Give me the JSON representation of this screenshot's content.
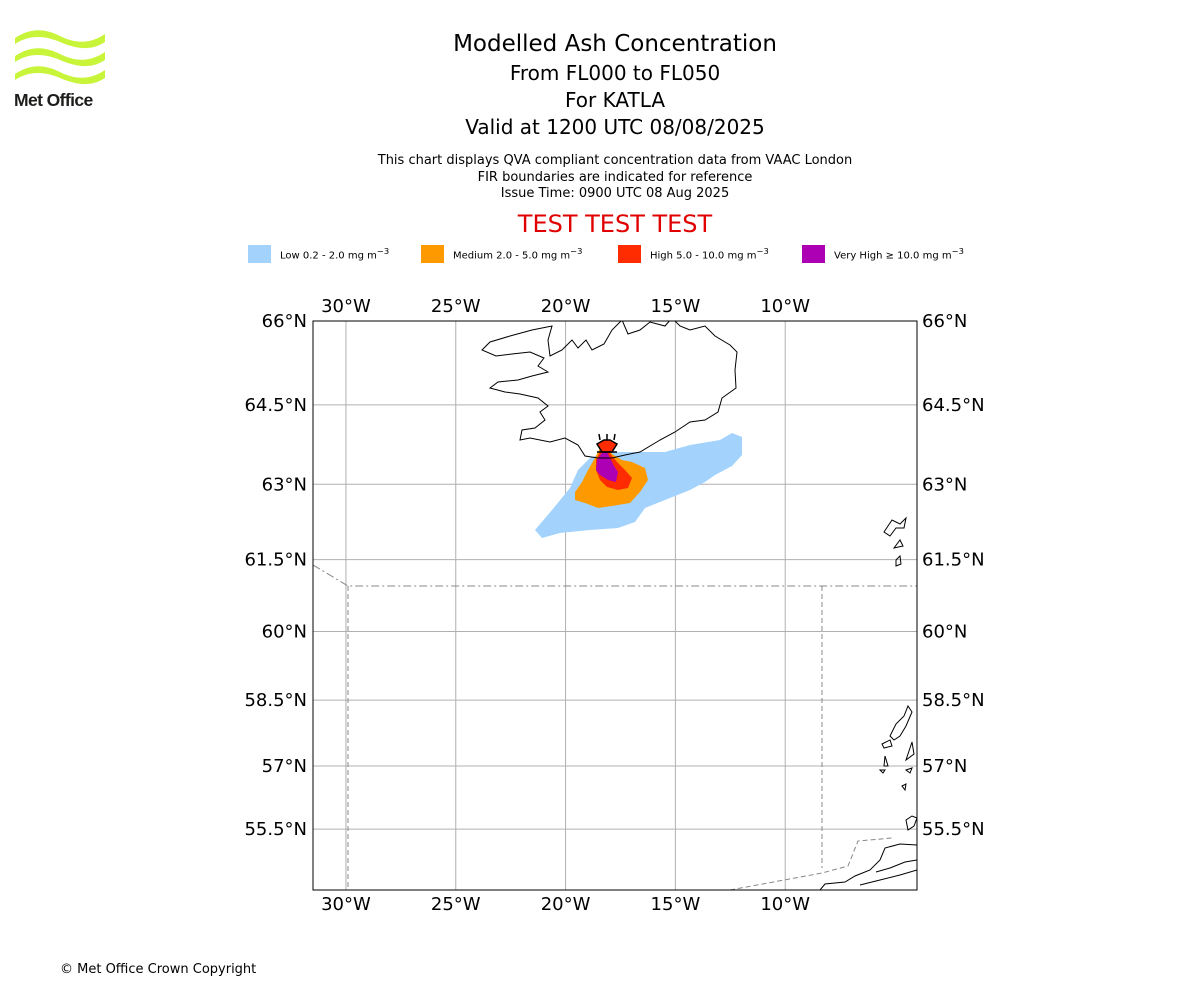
{
  "logo": {
    "text": "Met Office"
  },
  "titles": {
    "main": "Modelled Ash Concentration",
    "levels": "From FL000 to FL050",
    "volcano": "For KATLA",
    "valid": "Valid at 1200 UTC 08/08/2025"
  },
  "subtitles": {
    "line1": "This chart displays QVA compliant concentration data from VAAC London",
    "line2": "FIR boundaries are indicated for reference",
    "line3": "Issue Time: 0900 UTC 08 Aug 2025"
  },
  "test_banner": "TEST TEST TEST",
  "legend": [
    {
      "label": "Low 0.2 - 2.0 mg m",
      "unit_exp": "−3",
      "color": "#a3d3fd"
    },
    {
      "label": "Medium 2.0 - 5.0 mg m",
      "unit_exp": "−3",
      "color": "#fe9a00"
    },
    {
      "label": "High 5.0 - 10.0 mg m",
      "unit_exp": "−3",
      "color": "#fe2c00"
    },
    {
      "label": "Very High  ≥  10.0 mg m",
      "unit_exp": "−3",
      "color": "#ad00b4"
    }
  ],
  "map": {
    "lon_range": [
      -31.5,
      -4
    ],
    "lat_range": [
      54,
      66
    ],
    "lon_ticks": [
      {
        "value": -30,
        "label": "30°W"
      },
      {
        "value": -25,
        "label": "25°W"
      },
      {
        "value": -20,
        "label": "20°W"
      },
      {
        "value": -15,
        "label": "15°W"
      },
      {
        "value": -10,
        "label": "10°W"
      }
    ],
    "lat_ticks": [
      {
        "value": 66,
        "label": "66°N"
      },
      {
        "value": 64.5,
        "label": "64.5°N"
      },
      {
        "value": 63,
        "label": "63°N"
      },
      {
        "value": 61.5,
        "label": "61.5°N"
      },
      {
        "value": 60,
        "label": "60°N"
      },
      {
        "value": 58.5,
        "label": "58.5°N"
      },
      {
        "value": 57,
        "label": "57°N"
      },
      {
        "value": 55.5,
        "label": "55.5°N"
      }
    ],
    "grid": true,
    "volcano": {
      "name": "KATLA",
      "lon": -19.1,
      "lat": 63.6
    }
  },
  "copyright": "© Met Office Crown Copyright"
}
